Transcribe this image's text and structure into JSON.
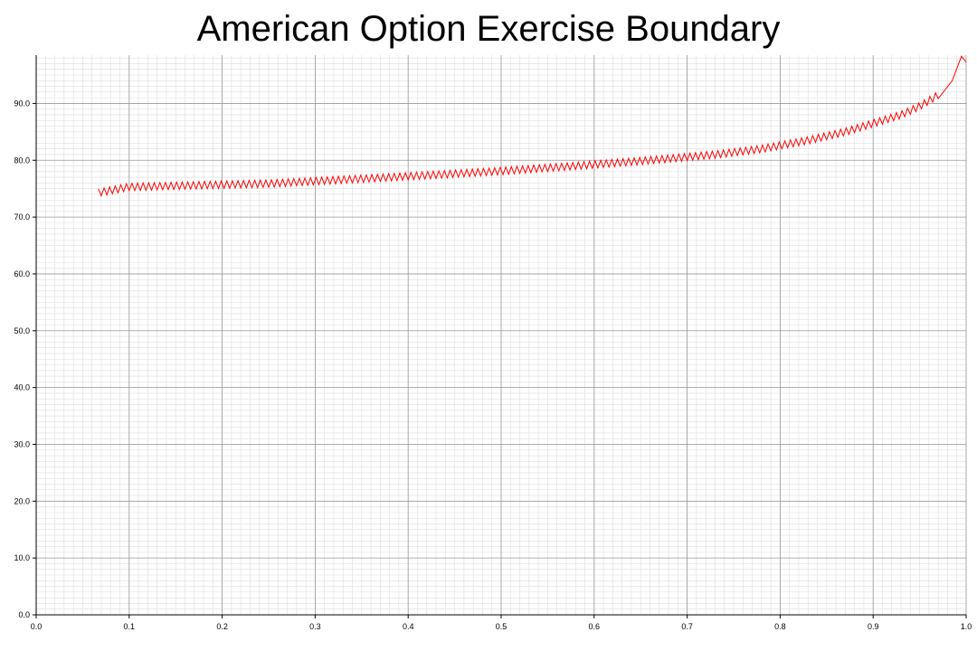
{
  "chart_data": {
    "type": "line",
    "title": "American Option Exercise Boundary",
    "xlabel": "",
    "ylabel": "",
    "xlim": [
      0.0,
      1.0
    ],
    "ylim": [
      0.0,
      98.5
    ],
    "x_ticks": [
      0.0,
      0.1,
      0.2,
      0.3,
      0.4,
      0.5,
      0.6,
      0.7,
      0.8,
      0.9,
      1.0
    ],
    "x_tick_labels": [
      "0.0",
      "0.1",
      "0.2",
      "0.3",
      "0.4",
      "0.5",
      "0.6",
      "0.7",
      "0.8",
      "0.9",
      "1.0"
    ],
    "y_ticks": [
      0.0,
      10.0,
      20.0,
      30.0,
      40.0,
      50.0,
      60.0,
      70.0,
      80.0,
      90.0
    ],
    "y_tick_labels": [
      "0.0",
      "10.0",
      "20.0",
      "30.0",
      "40.0",
      "50.0",
      "60.0",
      "70.0",
      "80.0",
      "90.0"
    ],
    "grid": true,
    "major_grid_color": "#999999",
    "minor_grid_color": "#dddddd",
    "legend": "none",
    "series": [
      {
        "color": "#ff0000",
        "x": [
          0.067,
          0.1,
          0.25,
          0.38,
          0.49,
          0.58,
          0.66,
          0.73,
          0.78,
          0.83,
          0.87,
          0.9,
          0.93,
          0.95,
          0.97,
          0.985,
          0.995,
          1.0
        ],
        "y": [
          74.3,
          75.3,
          75.9,
          77.0,
          78.0,
          79.0,
          80.0,
          81.0,
          82.0,
          83.5,
          85.0,
          86.5,
          88.0,
          89.5,
          91.5,
          94.0,
          98.3,
          97.3
        ],
        "oscillation_amplitude": 1.3
      }
    ]
  }
}
